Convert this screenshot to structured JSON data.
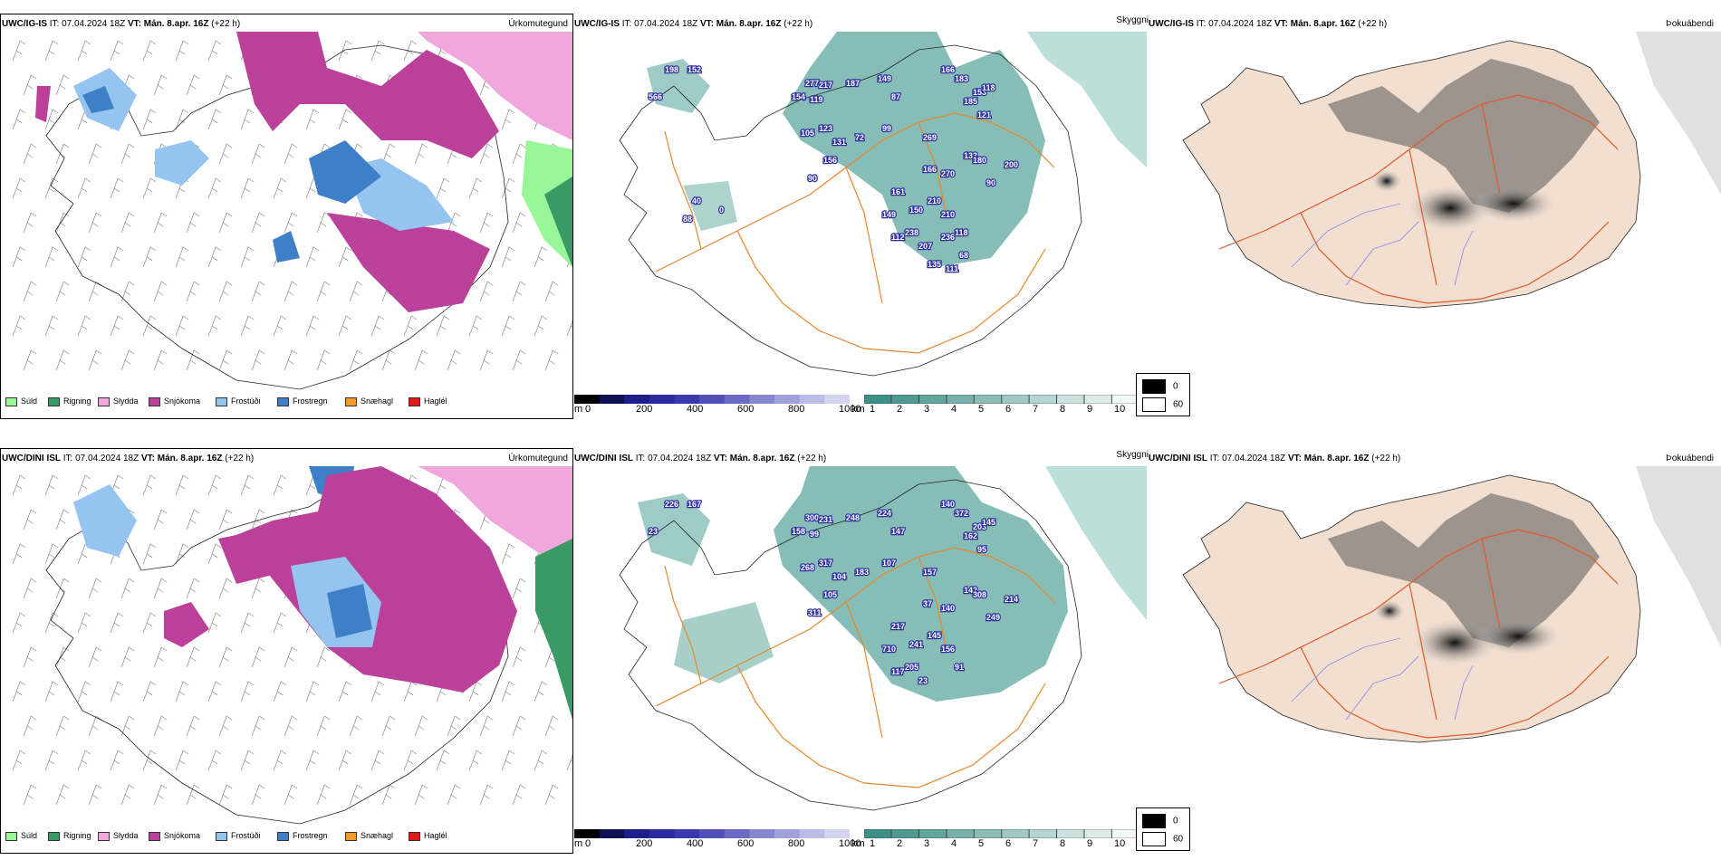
{
  "rows": [
    {
      "model": "UWC/IG-IS",
      "it": "IT: 07.04.2024 18Z",
      "vt_label": "VT:",
      "vt_value": "Mán. 8.apr. 16Z",
      "lead": "(+22 h)",
      "vis_values": [
        "198",
        "152",
        "566",
        "277",
        "217",
        "154",
        "119",
        "187",
        "149",
        "87",
        "166",
        "183",
        "153",
        "185",
        "118",
        "123",
        "131",
        "72",
        "105",
        "121",
        "99",
        "269",
        "133",
        "156",
        "90",
        "166",
        "270",
        "180",
        "210",
        "161",
        "200",
        "150",
        "90",
        "210",
        "149",
        "118",
        "112",
        "238",
        "207",
        "236",
        "135",
        "68",
        "111",
        "40",
        "0",
        "88"
      ]
    },
    {
      "model": "UWC/DINI ISL",
      "it": "IT: 07.04.2024 18Z",
      "vt_label": "VT:",
      "vt_value": "Mán. 8.apr. 16Z",
      "lead": "(+22 h)",
      "vis_values": [
        "226",
        "167",
        "23",
        "300",
        "231",
        "158",
        "99",
        "248",
        "224",
        "147",
        "140",
        "372",
        "203",
        "162",
        "145",
        "317",
        "104",
        "183",
        "268",
        "95",
        "107",
        "157",
        "142",
        "105",
        "311",
        "37",
        "140",
        "308",
        "145",
        "217",
        "214",
        "241",
        "249",
        "156",
        "710",
        "91",
        "117",
        "205",
        "23"
      ]
    }
  ],
  "panel_titles": {
    "precip": "Úrkomutegund",
    "visibility": "Skyggni",
    "fog": "Þokuábendi"
  },
  "precip_legend": [
    {
      "label": "Súld",
      "color": "#98f598"
    },
    {
      "label": "Rigning",
      "color": "#3a9a66"
    },
    {
      "label": "Slydda",
      "color": "#f0a8dc"
    },
    {
      "label": "Snjókoma",
      "color": "#bb409a"
    },
    {
      "label": "Frostúði",
      "color": "#96c4f0"
    },
    {
      "label": "Frostregn",
      "color": "#3d80c8"
    },
    {
      "label": "Snæhagl",
      "color": "#f09a30"
    },
    {
      "label": "Haglél",
      "color": "#e01818"
    }
  ],
  "elevation_scale": {
    "unit": "m",
    "ticks": [
      "0",
      "200",
      "400",
      "600",
      "800",
      "1000"
    ]
  },
  "visibility_scale": {
    "unit": "km",
    "ticks": [
      "1",
      "2",
      "3",
      "4",
      "5",
      "6",
      "7",
      "8",
      "9",
      "10"
    ]
  },
  "fog_legend": {
    "dark": "0",
    "light": "60"
  }
}
